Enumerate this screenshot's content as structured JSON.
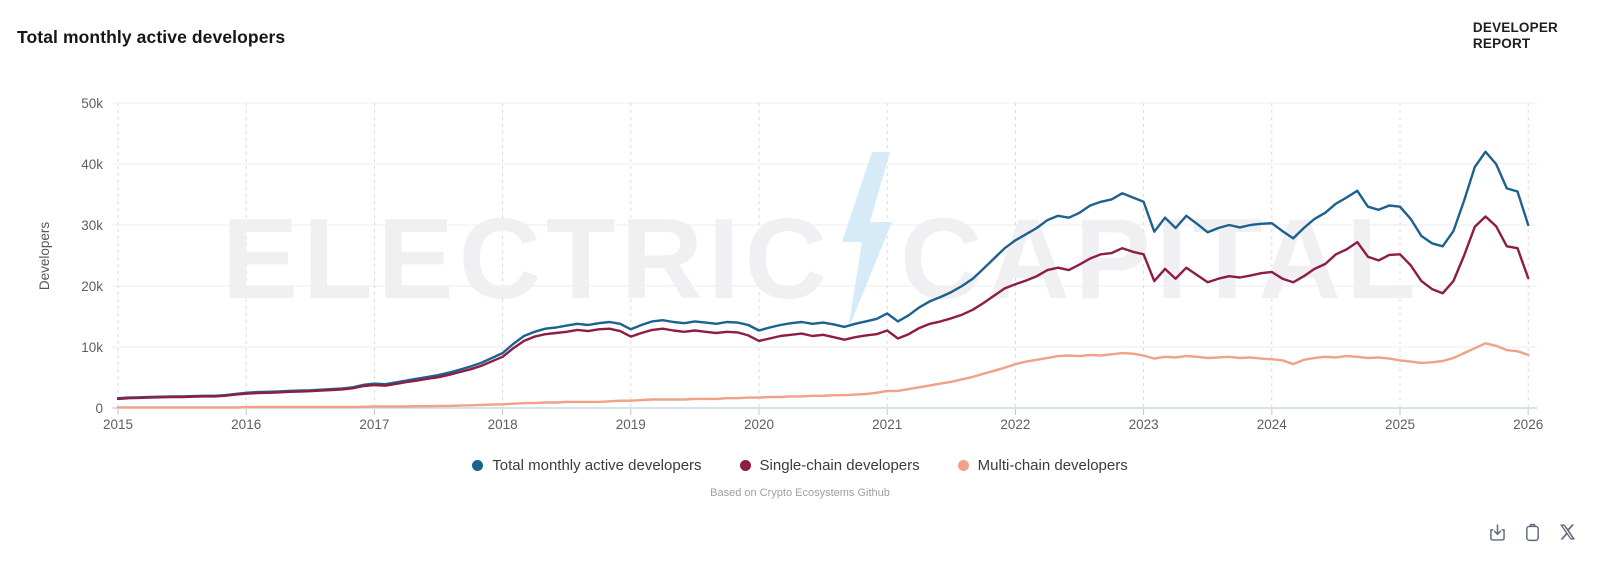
{
  "header": {
    "title": "Total monthly active developers",
    "logo_line1": "DEVELOPER",
    "logo_line2": "REPORT"
  },
  "watermark": {
    "left": "ELECTRIC",
    "right": "CAPITAL"
  },
  "caption": "Based on Crypto Ecosystems Github",
  "toolbar": {
    "download_icon": "download-icon",
    "copy_icon": "copy-icon",
    "x_icon": "x-social-icon"
  },
  "chart_data": {
    "type": "line",
    "title": "Total monthly active developers",
    "xlabel": "",
    "ylabel": "Developers",
    "x_ticks": [
      2015,
      2016,
      2017,
      2018,
      2019,
      2020,
      2021,
      2022,
      2023,
      2024,
      2025,
      2026
    ],
    "y_ticks": [
      {
        "value": 0,
        "label": "0"
      },
      {
        "value": 10000,
        "label": "10k"
      },
      {
        "value": 20000,
        "label": "20k"
      },
      {
        "value": 30000,
        "label": "30k"
      },
      {
        "value": 40000,
        "label": "40k"
      },
      {
        "value": 50000,
        "label": "50k"
      }
    ],
    "ylim": [
      0,
      50000
    ],
    "x_start_year": 2015,
    "points_per_year": 12,
    "grid": true,
    "legend_position": "bottom",
    "series": [
      {
        "name": "Total monthly active developers",
        "color": "#1d618f",
        "values": [
          1600,
          1700,
          1750,
          1800,
          1850,
          1900,
          1900,
          1950,
          2000,
          2000,
          2100,
          2300,
          2500,
          2600,
          2650,
          2700,
          2800,
          2850,
          2900,
          3000,
          3100,
          3200,
          3400,
          3800,
          4000,
          3900,
          4200,
          4500,
          4800,
          5100,
          5400,
          5800,
          6300,
          6800,
          7400,
          8200,
          9000,
          10500,
          11800,
          12500,
          13000,
          13200,
          13500,
          13800,
          13600,
          13900,
          14100,
          13800,
          12900,
          13600,
          14200,
          14400,
          14100,
          13900,
          14200,
          14000,
          13800,
          14100,
          14000,
          13600,
          12700,
          13200,
          13600,
          13900,
          14100,
          13800,
          14000,
          13700,
          13300,
          13800,
          14200,
          14600,
          15500,
          14200,
          15200,
          16500,
          17500,
          18200,
          19000,
          20000,
          21200,
          22800,
          24500,
          26200,
          27500,
          28500,
          29500,
          30800,
          31500,
          31200,
          32000,
          33200,
          33800,
          34200,
          35200,
          34500,
          33800,
          28900,
          31200,
          29500,
          31500,
          30200,
          28800,
          29500,
          30000,
          29600,
          30000,
          30200,
          30300,
          29000,
          27800,
          29500,
          31000,
          32000,
          33500,
          34500,
          35600,
          33000,
          32500,
          33200,
          33000,
          31000,
          28200,
          27000,
          26500,
          29000,
          34000,
          39500,
          42000,
          40000,
          36000,
          35500,
          30000
        ]
      },
      {
        "name": "Single-chain developers",
        "color": "#8e1d45",
        "values": [
          1500,
          1600,
          1650,
          1700,
          1750,
          1800,
          1800,
          1850,
          1900,
          1900,
          2000,
          2200,
          2350,
          2450,
          2500,
          2550,
          2650,
          2700,
          2750,
          2850,
          2950,
          3050,
          3250,
          3600,
          3750,
          3650,
          3950,
          4250,
          4500,
          4800,
          5050,
          5450,
          5900,
          6350,
          6900,
          7650,
          8400,
          9800,
          11000,
          11700,
          12100,
          12300,
          12500,
          12800,
          12600,
          12900,
          13000,
          12600,
          11700,
          12300,
          12800,
          13000,
          12700,
          12500,
          12700,
          12500,
          12300,
          12500,
          12400,
          11900,
          11000,
          11400,
          11800,
          12000,
          12200,
          11800,
          12000,
          11600,
          11200,
          11600,
          11900,
          12100,
          12700,
          11400,
          12100,
          13100,
          13800,
          14200,
          14700,
          15300,
          16100,
          17200,
          18400,
          19600,
          20300,
          20900,
          21600,
          22600,
          23000,
          22600,
          23500,
          24500,
          25200,
          25400,
          26200,
          25600,
          25200,
          20800,
          22800,
          21200,
          23000,
          21800,
          20600,
          21200,
          21600,
          21400,
          21700,
          22100,
          22300,
          21200,
          20600,
          21600,
          22800,
          23600,
          25200,
          26000,
          27200,
          24800,
          24200,
          25100,
          25200,
          23400,
          20800,
          19500,
          18800,
          20800,
          25000,
          29700,
          31400,
          29800,
          26500,
          26200,
          21300
        ]
      },
      {
        "name": "Multi-chain developers",
        "color": "#f0a187",
        "values": [
          100,
          100,
          100,
          100,
          100,
          100,
          100,
          100,
          100,
          100,
          100,
          100,
          150,
          150,
          150,
          150,
          150,
          150,
          150,
          150,
          150,
          150,
          150,
          200,
          250,
          250,
          250,
          250,
          300,
          300,
          350,
          350,
          400,
          450,
          500,
          550,
          600,
          700,
          800,
          800,
          900,
          900,
          1000,
          1000,
          1000,
          1000,
          1100,
          1200,
          1200,
          1300,
          1400,
          1400,
          1400,
          1400,
          1500,
          1500,
          1500,
          1600,
          1600,
          1700,
          1700,
          1800,
          1800,
          1900,
          1900,
          2000,
          2000,
          2100,
          2100,
          2200,
          2300,
          2500,
          2800,
          2800,
          3100,
          3400,
          3700,
          4000,
          4300,
          4700,
          5100,
          5600,
          6100,
          6600,
          7200,
          7600,
          7900,
          8200,
          8500,
          8600,
          8500,
          8700,
          8600,
          8800,
          9000,
          8900,
          8600,
          8100,
          8400,
          8300,
          8500,
          8400,
          8200,
          8300,
          8400,
          8200,
          8300,
          8100,
          8000,
          7800,
          7200,
          7900,
          8200,
          8400,
          8300,
          8500,
          8400,
          8200,
          8300,
          8100,
          7800,
          7600,
          7400,
          7500,
          7700,
          8200,
          9000,
          9800,
          10600,
          10200,
          9500,
          9300,
          8700
        ]
      }
    ]
  }
}
